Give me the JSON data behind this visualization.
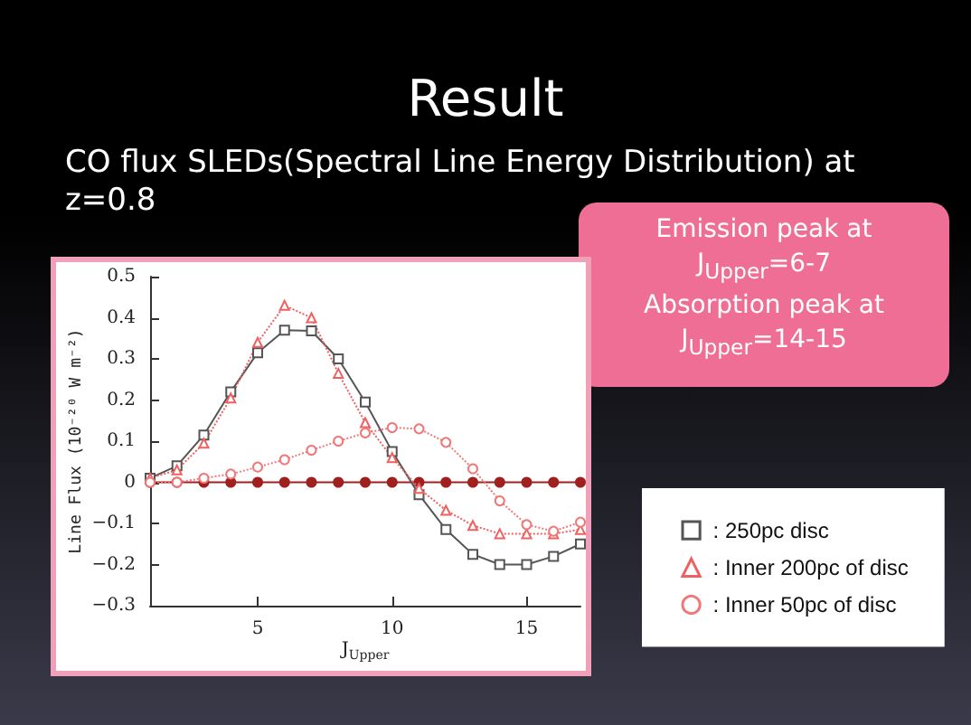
{
  "chart_data": {
    "type": "line",
    "title": "Result",
    "subtitle": "CO flux SLEDs(Spectral Line Energy Distribution) at z=0.8",
    "xlabel": "J$_{Upper}$",
    "ylabel": "Line Flux (10⁻²⁰ W m⁻²)",
    "annotations": [
      "Emission peak at\nJ$_{Upper}$=6-7\nAbsorption peak at\nJ$_{Upper}$=14-15"
    ],
    "x": [
      1,
      2,
      3,
      4,
      5,
      6,
      7,
      8,
      9,
      10,
      11,
      12,
      13,
      14,
      15,
      16,
      17
    ],
    "series": [
      {
        "name": ": 250pc disc",
        "color": "#555555",
        "marker": "square",
        "line_style": "solid",
        "values": [
          0.01,
          0.04,
          0.115,
          0.22,
          0.315,
          0.37,
          0.368,
          0.3,
          0.195,
          0.075,
          -0.03,
          -0.115,
          -0.175,
          -0.2,
          -0.2,
          -0.18,
          -0.15
        ]
      },
      {
        "name": ": Inner 200pc of disc",
        "color": "#f06060",
        "marker": "triangle",
        "line_style": "dotted",
        "values": [
          0.01,
          0.03,
          0.095,
          0.205,
          0.34,
          0.43,
          0.4,
          0.265,
          0.145,
          0.06,
          -0.015,
          -0.068,
          -0.105,
          -0.125,
          -0.125,
          -0.125,
          -0.115
        ]
      },
      {
        "name": ": Inner 50pc of disc",
        "color": "#f07878",
        "marker": "circle",
        "line_style": "dotted",
        "values": [
          0,
          0,
          0.01,
          0.02,
          0.037,
          0.055,
          0.078,
          0.1,
          0.12,
          0.133,
          0.13,
          0.097,
          0.033,
          -0.045,
          -0.103,
          -0.119,
          -0.097
        ]
      },
      {
        "color": "#a02020",
        "marker": "circle",
        "line_style": "solid",
        "values": [
          0,
          0,
          0,
          0,
          0,
          0,
          0,
          0,
          0,
          0,
          0,
          0,
          0,
          0,
          0,
          0,
          0
        ]
      }
    ],
    "xlim": [
      1,
      17
    ],
    "xticks": [
      5,
      10,
      15
    ],
    "ylim": [
      -0.3,
      0.5
    ],
    "yticks": [
      -0.3,
      -0.2,
      -0.1,
      0,
      0.1,
      0.2,
      0.3,
      0.4,
      0.5
    ],
    "grid": false,
    "legend": "right"
  }
}
